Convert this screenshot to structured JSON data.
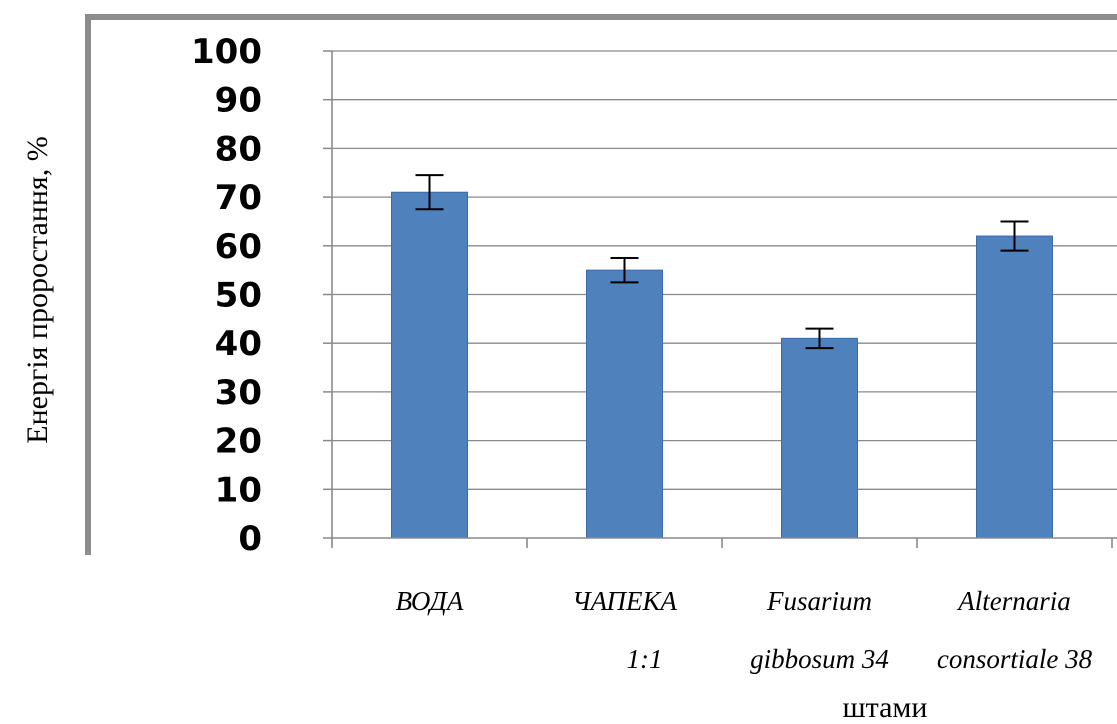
{
  "chart_data": {
    "type": "bar",
    "categories": [
      [
        "ВОДА"
      ],
      [
        "ЧАПЕКА",
        "1:1"
      ],
      [
        "Fusarium",
        "gibbosum 34"
      ],
      [
        "Alternaria",
        "consortiale 38"
      ]
    ],
    "values": [
      71,
      55,
      41,
      62
    ],
    "error_bars": [
      3.5,
      2.5,
      2,
      3
    ],
    "ylabel": "Енергія проростання, %",
    "xlabel": "штами",
    "ylim": [
      0,
      100
    ],
    "yticks": [
      0,
      10,
      20,
      30,
      40,
      50,
      60,
      70,
      80,
      90,
      100
    ],
    "grid": true,
    "legend": "none",
    "bar_color": "#4F81BD",
    "bar_edge_color": "#3A6AA8"
  }
}
